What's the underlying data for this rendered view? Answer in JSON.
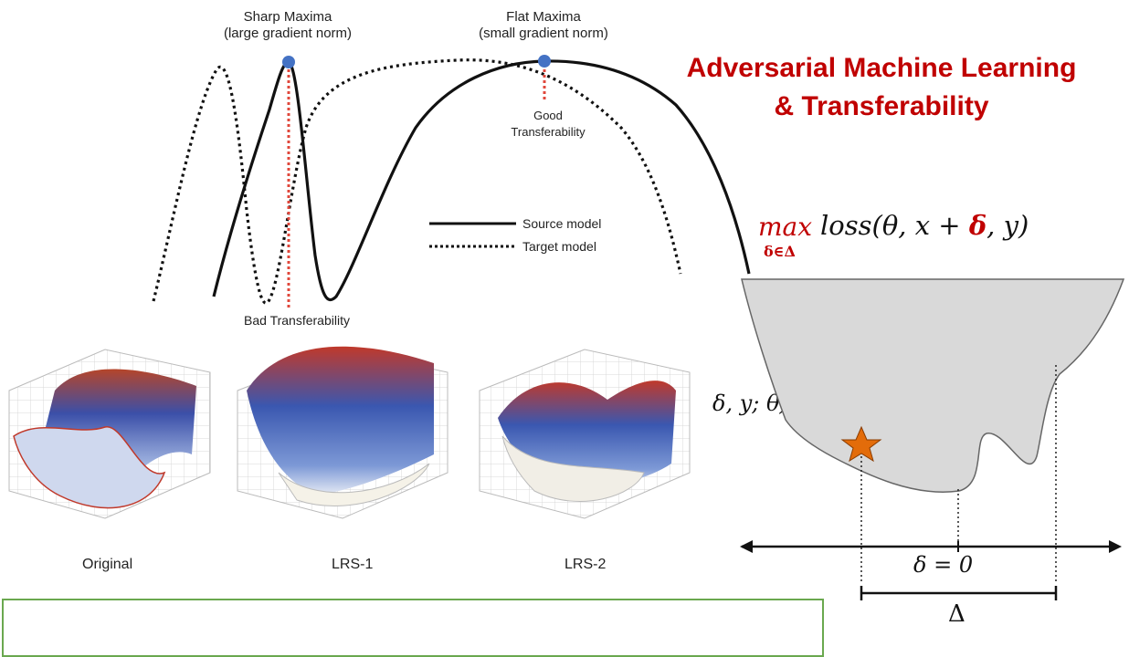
{
  "title": {
    "line1": "Adversarial Machine Learning",
    "line2": "& Transferability"
  },
  "landscape": {
    "sharp_label": "Sharp Maxima",
    "sharp_sub": "(large gradient norm)",
    "flat_label": "Flat Maxima",
    "flat_sub": "(small gradient norm)",
    "good_line1": "Good",
    "good_line2": "Transferability",
    "bad_label": "Bad Transferability",
    "legend_source": "Source model",
    "legend_target": "Target model"
  },
  "surfaces": [
    {
      "label": "Original"
    },
    {
      "label": "LRS-1"
    },
    {
      "label": "LRS-2"
    }
  ],
  "formula": {
    "max": "max",
    "sub": "δ∈Δ",
    "loss_open": "loss(θ, x + ",
    "delta": "δ",
    "loss_close": ", y)"
  },
  "partial_formula": "δ, y; θ)",
  "loss_plot": {
    "delta_zero": "δ = 0",
    "Delta": "Δ"
  },
  "colors": {
    "title": "#c00000",
    "box": "#6aa84f",
    "point": "#4472c4",
    "star": "#e36c0a"
  }
}
